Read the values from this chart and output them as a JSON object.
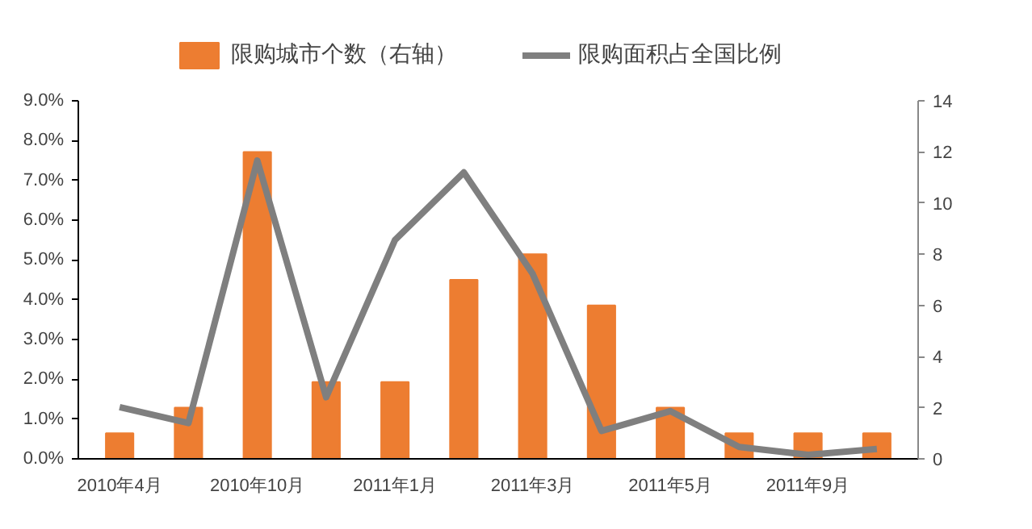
{
  "chart_data": {
    "type": "bar",
    "categories": [
      "2010年4月",
      null,
      "2010年10月",
      null,
      "2011年1月",
      null,
      "2011年3月",
      null,
      "2011年5月",
      null,
      "2011年9月",
      null
    ],
    "series": [
      {
        "name": "限购城市个数（右轴）",
        "axis": "y2",
        "color": "#ed7d31",
        "values": [
          1,
          2,
          12,
          3,
          3,
          7,
          8,
          6,
          2,
          1,
          1,
          1
        ]
      },
      {
        "name": "限购面积占全国比例",
        "type": "line",
        "color": "#7f7f7f",
        "values": [
          1.3,
          0.9,
          7.5,
          1.55,
          5.5,
          7.2,
          4.65,
          0.7,
          1.2,
          0.3,
          0.1,
          0.25
        ]
      }
    ],
    "ylim": [
      0,
      9
    ],
    "yticks": [
      {
        "value": 0,
        "label": "0.0%"
      },
      {
        "value": 1,
        "label": "1.0%"
      },
      {
        "value": 2,
        "label": "2.0%"
      },
      {
        "value": 3,
        "label": "3.0%"
      },
      {
        "value": 4,
        "label": "4.0%"
      },
      {
        "value": 5,
        "label": "5.0%"
      },
      {
        "value": 6,
        "label": "6.0%"
      },
      {
        "value": 7,
        "label": "7.0%"
      },
      {
        "value": 8,
        "label": "8.0%"
      },
      {
        "value": 9,
        "label": "9.0%"
      }
    ],
    "y2lim": [
      0,
      14
    ],
    "y2ticks": [
      0,
      2,
      4,
      6,
      8,
      10,
      12,
      14
    ],
    "legend": "top",
    "grid": false
  }
}
